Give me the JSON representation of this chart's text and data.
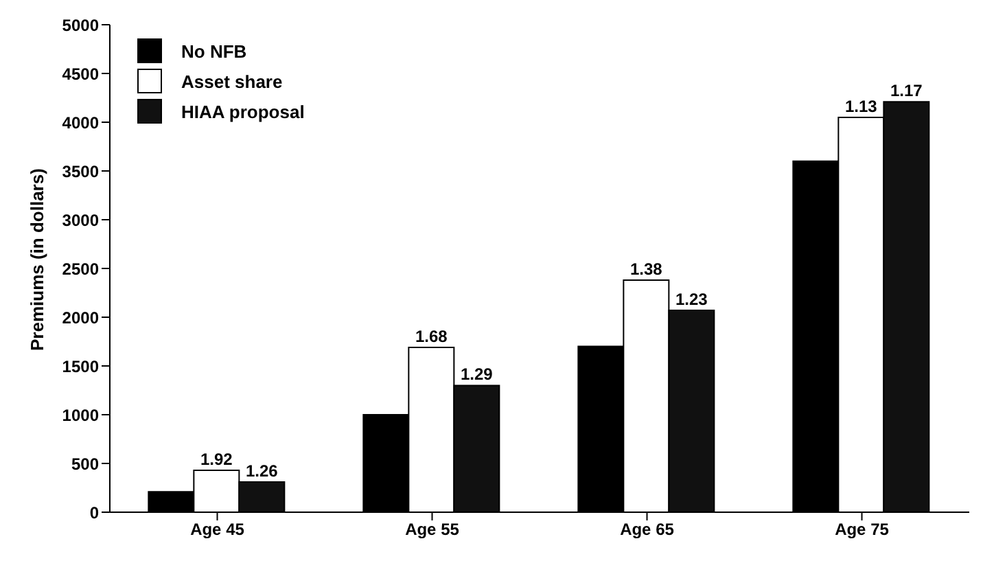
{
  "chart_data": {
    "type": "bar",
    "ylabel": "Premiums (in dollars)",
    "categories": [
      "Age 45",
      "Age 55",
      "Age 65",
      "Age 75"
    ],
    "series": [
      {
        "name": "No NFB",
        "color": "#000000",
        "values": [
          210,
          1000,
          1700,
          3600
        ]
      },
      {
        "name": "Asset share",
        "color": "#ffffff",
        "values": [
          430,
          1690,
          2380,
          4050
        ]
      },
      {
        "name": "HIAA proposal",
        "color": "#111111",
        "values": [
          310,
          1300,
          2070,
          4210
        ]
      }
    ],
    "annotations": [
      {
        "text": "1.92",
        "x": "Age 45",
        "y": 430
      },
      "1.26",
      {
        "text": "1.68",
        "x": "Age 55",
        "y": 1690
      },
      "1.29",
      {
        "text": "1.38",
        "x": "Age 65",
        "y": 2380
      },
      "1.23",
      {
        "text": "1.13",
        "x": "Age 75",
        "y": 4050
      },
      "1.17"
    ],
    "ylim": [
      0,
      5000
    ],
    "yticks": [
      0,
      500,
      1000,
      1500,
      2000,
      2500,
      3000,
      3500,
      4000,
      4500,
      5000
    ],
    "grid": false,
    "legend": "top left"
  }
}
